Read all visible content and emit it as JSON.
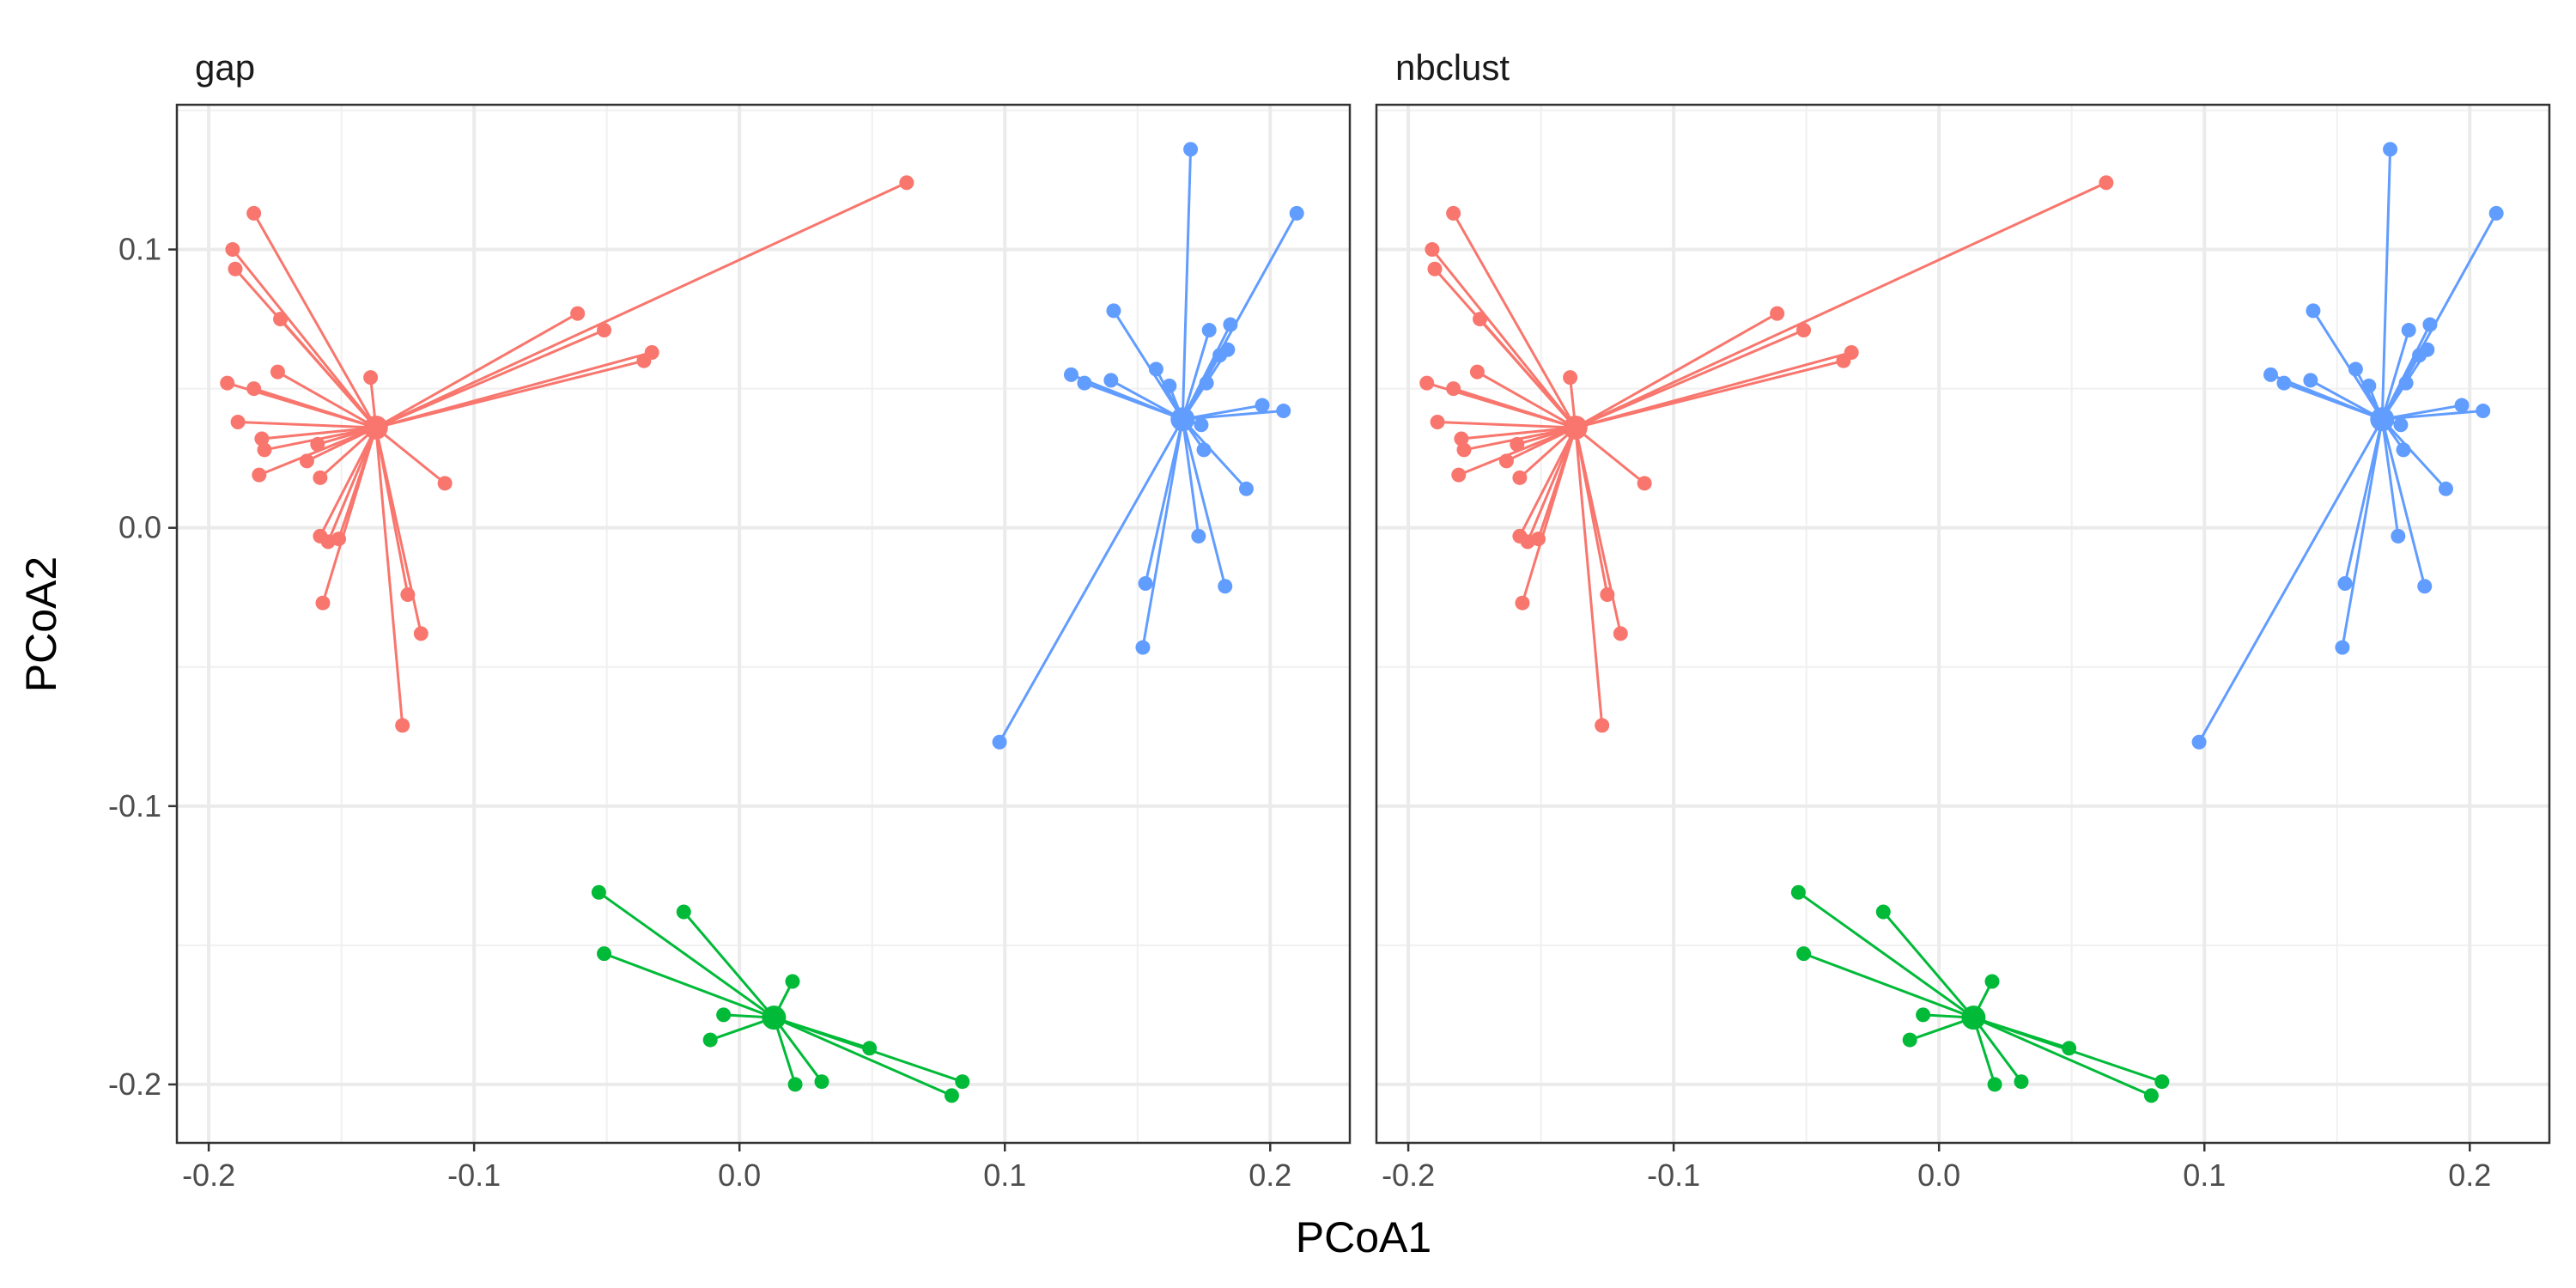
{
  "chart_data": {
    "type": "scatter",
    "subtype": "faceted PCoA ordination with cluster centroids (spider plot)",
    "xlabel": "PCoA1",
    "ylabel": "PCoA2",
    "xlim": [
      -0.212,
      0.23
    ],
    "ylim": [
      -0.221,
      0.152
    ],
    "x_ticks": [
      -0.2,
      -0.1,
      0.0,
      0.1,
      0.2
    ],
    "x_tick_labels": [
      "-0.2",
      "-0.1",
      "0.0",
      "0.1",
      "0.2"
    ],
    "y_ticks": [
      -0.2,
      -0.1,
      0.0,
      0.1
    ],
    "y_tick_labels": [
      "-0.2",
      "-0.1",
      "0.0",
      "0.1"
    ],
    "grid": true,
    "legend": "none",
    "facets": [
      "gap",
      "nbclust"
    ],
    "colors": {
      "1": "#F8766D",
      "2": "#00BA38",
      "3": "#619CFF"
    },
    "series": [
      {
        "cluster": "1",
        "centroid": [
          -0.137,
          0.036
        ],
        "points": [
          [
            0.063,
            0.124
          ],
          [
            -0.183,
            0.113
          ],
          [
            -0.191,
            0.1
          ],
          [
            -0.19,
            0.093
          ],
          [
            -0.173,
            0.075
          ],
          [
            -0.061,
            0.077
          ],
          [
            -0.051,
            0.071
          ],
          [
            -0.033,
            0.063
          ],
          [
            -0.036,
            0.06
          ],
          [
            -0.174,
            0.056
          ],
          [
            -0.139,
            0.054
          ],
          [
            -0.193,
            0.052
          ],
          [
            -0.183,
            0.05
          ],
          [
            -0.189,
            0.038
          ],
          [
            -0.18,
            0.032
          ],
          [
            -0.179,
            0.028
          ],
          [
            -0.159,
            0.03
          ],
          [
            -0.163,
            0.024
          ],
          [
            -0.181,
            0.019
          ],
          [
            -0.158,
            0.018
          ],
          [
            -0.111,
            0.016
          ],
          [
            -0.158,
            -0.003
          ],
          [
            -0.155,
            -0.005
          ],
          [
            -0.151,
            -0.004
          ],
          [
            -0.125,
            -0.024
          ],
          [
            -0.157,
            -0.027
          ],
          [
            -0.12,
            -0.038
          ],
          [
            -0.127,
            -0.071
          ]
        ]
      },
      {
        "cluster": "2",
        "centroid": [
          0.013,
          -0.176
        ],
        "points": [
          [
            -0.053,
            -0.131
          ],
          [
            -0.021,
            -0.138
          ],
          [
            -0.051,
            -0.153
          ],
          [
            0.02,
            -0.163
          ],
          [
            -0.006,
            -0.175
          ],
          [
            -0.011,
            -0.184
          ],
          [
            0.049,
            -0.187
          ],
          [
            0.084,
            -0.199
          ],
          [
            0.031,
            -0.199
          ],
          [
            0.021,
            -0.2
          ],
          [
            0.08,
            -0.204
          ]
        ]
      },
      {
        "cluster": "3",
        "centroid": [
          0.167,
          0.039
        ],
        "points": [
          [
            0.17,
            0.136
          ],
          [
            0.21,
            0.113
          ],
          [
            0.141,
            0.078
          ],
          [
            0.185,
            0.073
          ],
          [
            0.177,
            0.071
          ],
          [
            0.184,
            0.064
          ],
          [
            0.181,
            0.062
          ],
          [
            0.157,
            0.057
          ],
          [
            0.176,
            0.052
          ],
          [
            0.125,
            0.055
          ],
          [
            0.13,
            0.052
          ],
          [
            0.14,
            0.053
          ],
          [
            0.162,
            0.051
          ],
          [
            0.197,
            0.044
          ],
          [
            0.205,
            0.042
          ],
          [
            0.174,
            0.037
          ],
          [
            0.175,
            0.028
          ],
          [
            0.191,
            0.014
          ],
          [
            0.173,
            -0.003
          ],
          [
            0.183,
            -0.021
          ],
          [
            0.153,
            -0.02
          ],
          [
            0.152,
            -0.043
          ],
          [
            0.098,
            -0.077
          ]
        ]
      }
    ]
  }
}
